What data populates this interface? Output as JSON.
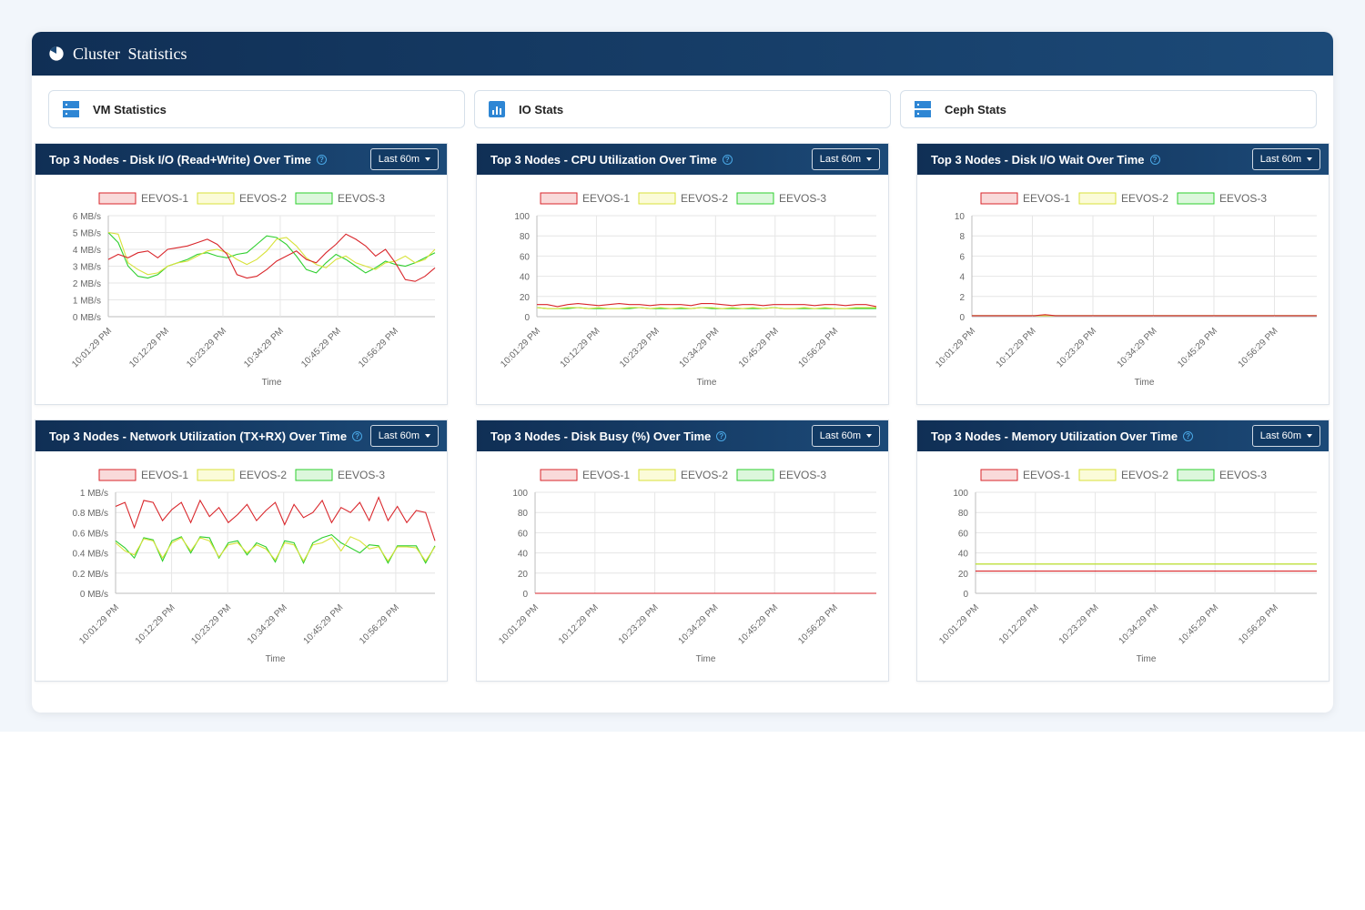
{
  "header": {
    "title": "Cluster  Statistics"
  },
  "tabs": [
    {
      "label": "VM Statistics",
      "icon": "server-icon"
    },
    {
      "label": "IO Stats",
      "icon": "bar-chart-icon"
    },
    {
      "label": "Ceph Stats",
      "icon": "server-icon"
    }
  ],
  "colors": {
    "header_bg": "#102f55",
    "series": [
      "#d9262b",
      "#d8e23a",
      "#2ecf2e"
    ],
    "series_fill": [
      "#f9dada",
      "#fbfbd8",
      "#dcf7dc"
    ]
  },
  "charts": [
    {
      "title": "Top 3 Nodes - Disk I/O (Read+Write) Over Time",
      "range_label": "Last 60m",
      "chart_data": {
        "type": "line",
        "ylabel": "Top 3 Nodes - Disk I/O (Read+Write) Over Time",
        "xlabel": "Time",
        "x_ticks": [
          "10:01:29 PM",
          "10:12:29 PM",
          "10:23:29 PM",
          "10:34:29 PM",
          "10:45:29 PM",
          "10:56:29 PM"
        ],
        "y_ticks": [
          "0 MB/s",
          "1 MB/s",
          "2 MB/s",
          "3 MB/s",
          "4 MB/s",
          "5 MB/s",
          "6 MB/s"
        ],
        "ylim": [
          0,
          6
        ],
        "series": [
          {
            "name": "EEVOS-1",
            "values": [
              3.4,
              3.7,
              3.5,
              3.8,
              3.9,
              3.5,
              4.0,
              4.1,
              4.2,
              4.4,
              4.6,
              4.3,
              3.7,
              2.5,
              2.3,
              2.4,
              2.8,
              3.3,
              3.6,
              3.9,
              3.4,
              3.2,
              3.8,
              4.3,
              4.9,
              4.6,
              4.2,
              3.6,
              4.0,
              3.2,
              2.2,
              2.1,
              2.4,
              2.9
            ]
          },
          {
            "name": "EEVOS-2",
            "values": [
              5.0,
              4.9,
              3.2,
              2.8,
              2.5,
              2.6,
              3.0,
              3.2,
              3.3,
              3.6,
              3.9,
              4.0,
              3.8,
              3.4,
              3.1,
              3.4,
              3.9,
              4.6,
              4.7,
              4.2,
              3.5,
              3.1,
              2.9,
              3.4,
              3.6,
              3.2,
              3.0,
              2.8,
              3.2,
              3.3,
              3.6,
              3.2,
              3.4,
              4.0
            ]
          },
          {
            "name": "EEVOS-3",
            "values": [
              5.0,
              4.4,
              3.0,
              2.4,
              2.3,
              2.5,
              3.0,
              3.2,
              3.4,
              3.7,
              3.8,
              3.6,
              3.5,
              3.7,
              3.8,
              4.3,
              4.8,
              4.7,
              4.3,
              3.6,
              2.8,
              2.6,
              3.2,
              3.7,
              3.4,
              3.0,
              2.6,
              2.9,
              3.3,
              3.1,
              3.0,
              3.2,
              3.5,
              3.8
            ]
          }
        ]
      }
    },
    {
      "title": "Top 3 Nodes - CPU Utilization Over Time",
      "range_label": "Last 60m",
      "chart_data": {
        "type": "line",
        "ylabel": "Top 3 Nodes - CPU Utilization Over Time",
        "xlabel": "Time",
        "x_ticks": [
          "10:01:29 PM",
          "10:12:29 PM",
          "10:23:29 PM",
          "10:34:29 PM",
          "10:45:29 PM",
          "10:56:29 PM"
        ],
        "y_ticks": [
          "0",
          "20",
          "40",
          "60",
          "80",
          "100"
        ],
        "ylim": [
          0,
          100
        ],
        "series": [
          {
            "name": "EEVOS-1",
            "values": [
              12,
              12,
              10,
              12,
              13,
              12,
              11,
              12,
              13,
              12,
              12,
              11,
              12,
              12,
              12,
              11,
              13,
              13,
              12,
              11,
              12,
              12,
              11,
              12,
              12,
              12,
              12,
              11,
              12,
              12,
              11,
              12,
              12,
              10
            ]
          },
          {
            "name": "EEVOS-2",
            "values": [
              9,
              8,
              8,
              9,
              9,
              8,
              9,
              8,
              8,
              9,
              9,
              8,
              9,
              8,
              9,
              8,
              9,
              9,
              8,
              9,
              8,
              9,
              8,
              9,
              8,
              8,
              9,
              8,
              9,
              8,
              8,
              9,
              9,
              9
            ]
          },
          {
            "name": "EEVOS-3",
            "values": [
              9,
              8,
              8,
              8,
              9,
              8,
              8,
              8,
              8,
              8,
              9,
              8,
              8,
              8,
              8,
              8,
              9,
              8,
              8,
              8,
              8,
              8,
              8,
              9,
              8,
              8,
              8,
              8,
              8,
              8,
              8,
              8,
              8,
              8
            ]
          }
        ]
      }
    },
    {
      "title": "Top 3 Nodes - Disk I/O Wait Over Time",
      "range_label": "Last 60m",
      "chart_data": {
        "type": "line",
        "ylabel": "Top 3 Nodes - Disk I/O Wait Over Time",
        "xlabel": "Time",
        "x_ticks": [
          "10:01:29 PM",
          "10:12:29 PM",
          "10:23:29 PM",
          "10:34:29 PM",
          "10:45:29 PM",
          "10:56:29 PM"
        ],
        "y_ticks": [
          "0",
          "2",
          "4",
          "6",
          "8",
          "10"
        ],
        "ylim": [
          0,
          10
        ],
        "series": [
          {
            "name": "EEVOS-1",
            "values": [
              0.1,
              0.1,
              0.1,
              0.1,
              0.1,
              0.1,
              0.1,
              0.2,
              0.1,
              0.1,
              0.1,
              0.1,
              0.1,
              0.1,
              0.1,
              0.1,
              0.1,
              0.1,
              0.1,
              0.1,
              0.1,
              0.1,
              0.1,
              0.1,
              0.1,
              0.1,
              0.1,
              0.1,
              0.1,
              0.1,
              0.1,
              0.1,
              0.1,
              0.1
            ]
          },
          {
            "name": "EEVOS-2",
            "values": [
              0.1,
              0.1,
              0.1,
              0.1,
              0.1,
              0.1,
              0.1,
              0.1,
              0.1,
              0.1,
              0.1,
              0.1,
              0.1,
              0.1,
              0.1,
              0.1,
              0.1,
              0.1,
              0.1,
              0.1,
              0.1,
              0.1,
              0.1,
              0.1,
              0.1,
              0.1,
              0.1,
              0.1,
              0.1,
              0.1,
              0.1,
              0.1,
              0.1,
              0.1
            ]
          },
          {
            "name": "EEVOS-3",
            "values": [
              0.1,
              0.1,
              0.1,
              0.1,
              0.1,
              0.1,
              0.1,
              0.1,
              0.1,
              0.1,
              0.1,
              0.1,
              0.1,
              0.1,
              0.1,
              0.1,
              0.1,
              0.1,
              0.1,
              0.1,
              0.1,
              0.1,
              0.1,
              0.1,
              0.1,
              0.1,
              0.1,
              0.1,
              0.1,
              0.1,
              0.1,
              0.1,
              0.1,
              0.1
            ]
          }
        ]
      }
    },
    {
      "title": "Top 3 Nodes - Network Utilization (TX+RX) Over Time",
      "range_label": "Last 60m",
      "chart_data": {
        "type": "line",
        "ylabel": "Top 3 Nodes - Network Utilization (TX+RX) Over Time",
        "xlabel": "Time",
        "x_ticks": [
          "10:01:29 PM",
          "10:12:29 PM",
          "10:23:29 PM",
          "10:34:29 PM",
          "10:45:29 PM",
          "10:56:29 PM"
        ],
        "y_ticks": [
          "0 MB/s",
          "0.2 MB/s",
          "0.4 MB/s",
          "0.6 MB/s",
          "0.8 MB/s",
          "1 MB/s"
        ],
        "ylim": [
          0,
          1
        ],
        "series": [
          {
            "name": "EEVOS-1",
            "values": [
              0.86,
              0.9,
              0.65,
              0.92,
              0.9,
              0.72,
              0.83,
              0.9,
              0.7,
              0.92,
              0.76,
              0.85,
              0.7,
              0.78,
              0.88,
              0.72,
              0.82,
              0.9,
              0.68,
              0.88,
              0.75,
              0.8,
              0.92,
              0.7,
              0.85,
              0.8,
              0.9,
              0.72,
              0.95,
              0.72,
              0.86,
              0.7,
              0.82,
              0.8,
              0.52
            ]
          },
          {
            "name": "EEVOS-2",
            "values": [
              0.5,
              0.42,
              0.38,
              0.54,
              0.52,
              0.35,
              0.5,
              0.55,
              0.42,
              0.55,
              0.52,
              0.36,
              0.48,
              0.5,
              0.4,
              0.48,
              0.44,
              0.33,
              0.5,
              0.48,
              0.32,
              0.48,
              0.5,
              0.55,
              0.42,
              0.56,
              0.52,
              0.44,
              0.46,
              0.32,
              0.46,
              0.46,
              0.45,
              0.32,
              0.46
            ]
          },
          {
            "name": "EEVOS-3",
            "values": [
              0.52,
              0.45,
              0.35,
              0.55,
              0.53,
              0.32,
              0.52,
              0.56,
              0.4,
              0.56,
              0.55,
              0.35,
              0.5,
              0.52,
              0.38,
              0.5,
              0.46,
              0.31,
              0.52,
              0.5,
              0.3,
              0.5,
              0.55,
              0.58,
              0.5,
              0.45,
              0.4,
              0.48,
              0.47,
              0.3,
              0.47,
              0.47,
              0.47,
              0.3,
              0.47
            ]
          }
        ]
      }
    },
    {
      "title": "Top 3 Nodes - Disk Busy (%) Over Time",
      "range_label": "Last 60m",
      "chart_data": {
        "type": "line",
        "ylabel": "Top 3 Nodes - Disk Busy (%) Over Time",
        "xlabel": "Time",
        "x_ticks": [
          "10:01:29 PM",
          "10:12:29 PM",
          "10:23:29 PM",
          "10:34:29 PM",
          "10:45:29 PM",
          "10:56:29 PM"
        ],
        "y_ticks": [
          "0",
          "20",
          "40",
          "60",
          "80",
          "100"
        ],
        "ylim": [
          0,
          100
        ],
        "series": [
          {
            "name": "EEVOS-1",
            "values": [
              0,
              0,
              0,
              0,
              0,
              0,
              0,
              0,
              0,
              0,
              0,
              0,
              0,
              0,
              0,
              0,
              0,
              0,
              0,
              0,
              0,
              0,
              0,
              0,
              0,
              0,
              0,
              0,
              0,
              0,
              0,
              0,
              0,
              0
            ]
          },
          {
            "name": "EEVOS-2",
            "values": [
              0,
              0,
              0,
              0,
              0,
              0,
              0,
              0,
              0,
              0,
              0,
              0,
              0,
              0,
              0,
              0,
              0,
              0,
              0,
              0,
              0,
              0,
              0,
              0,
              0,
              0,
              0,
              0,
              0,
              0,
              0,
              0,
              0,
              0
            ]
          },
          {
            "name": "EEVOS-3",
            "values": [
              0,
              0,
              0,
              0,
              0,
              0,
              0,
              0,
              0,
              0,
              0,
              0,
              0,
              0,
              0,
              0,
              0,
              0,
              0,
              0,
              0,
              0,
              0,
              0,
              0,
              0,
              0,
              0,
              0,
              0,
              0,
              0,
              0,
              0
            ]
          }
        ]
      }
    },
    {
      "title": "Top 3 Nodes - Memory Utilization Over Time",
      "range_label": "Last 60m",
      "chart_data": {
        "type": "line",
        "ylabel": "Top 3 Nodes - Memory Utilization Over Time",
        "xlabel": "Time",
        "x_ticks": [
          "10:01:29 PM",
          "10:12:29 PM",
          "10:23:29 PM",
          "10:34:29 PM",
          "10:45:29 PM",
          "10:56:29 PM"
        ],
        "y_ticks": [
          "0",
          "20",
          "40",
          "60",
          "80",
          "100"
        ],
        "ylim": [
          0,
          100
        ],
        "series": [
          {
            "name": "EEVOS-1",
            "values": [
              22,
              22,
              22,
              22,
              22,
              22,
              22,
              22,
              22,
              22,
              22,
              22,
              22,
              22,
              22,
              22,
              22,
              22,
              22,
              22,
              22,
              22,
              22,
              22,
              22,
              22,
              22,
              22,
              22,
              22,
              22,
              22,
              22,
              22
            ]
          },
          {
            "name": "EEVOS-2",
            "values": [
              29,
              29,
              29,
              29,
              29,
              29,
              29,
              29,
              29,
              29,
              29,
              29,
              29,
              29,
              29,
              29,
              29,
              29,
              29,
              29,
              29,
              29,
              29,
              29,
              29,
              29,
              29,
              29,
              29,
              29,
              29,
              29,
              29,
              29
            ]
          },
          {
            "name": "EEVOS-3",
            "values": [
              29,
              29,
              29,
              29,
              29,
              29,
              29,
              29,
              29,
              29,
              29,
              29,
              29,
              29,
              29,
              29,
              29,
              29,
              29,
              29,
              29,
              29,
              29,
              29,
              29,
              29,
              29,
              29,
              29,
              29,
              29,
              29,
              29,
              29
            ]
          }
        ]
      }
    }
  ]
}
